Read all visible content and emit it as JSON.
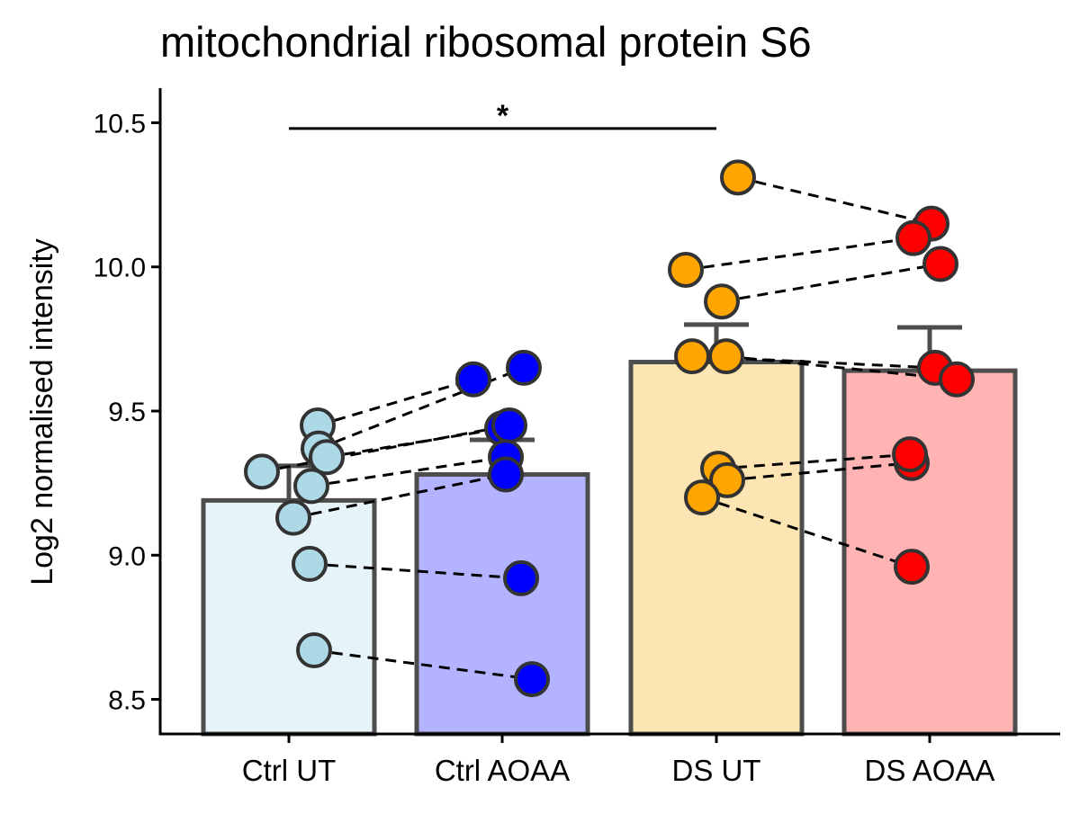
{
  "chart_data": {
    "type": "bar",
    "title": "mitochondrial ribosomal protein S6",
    "xlabel": "",
    "ylabel": "Log2 normalised intensity",
    "ylim": [
      8.38,
      10.62
    ],
    "yticks": [
      "8.5",
      "9.0",
      "9.5",
      "10.0",
      "10.5"
    ],
    "ytick_values": [
      8.5,
      9.0,
      9.5,
      10.0,
      10.5
    ],
    "categories": [
      "Ctrl UT",
      "Ctrl AOAA",
      "DS UT",
      "DS AOAA"
    ],
    "values": [
      9.19,
      9.28,
      9.67,
      9.64
    ],
    "errors": [
      0.12,
      0.12,
      0.13,
      0.15
    ],
    "bar_fill_colors": [
      "#e6f3f9",
      "#b3b3ff",
      "#fde5b3",
      "#ffb3b3"
    ],
    "point_colors": [
      "#add8e6",
      "#0000ff",
      "#ffa500",
      "#ff0000"
    ],
    "bar_edge_color": "#4d4d4d",
    "points": [
      {
        "group": "Ctrl UT",
        "values": [
          9.45,
          9.37,
          9.34,
          9.29,
          9.24,
          9.13,
          8.97,
          8.67
        ]
      },
      {
        "group": "Ctrl AOAA",
        "values": [
          9.61,
          9.65,
          9.44,
          9.45,
          9.34,
          9.28,
          8.92,
          8.57
        ]
      },
      {
        "group": "DS UT",
        "values": [
          10.31,
          9.99,
          9.88,
          9.69,
          9.69,
          9.3,
          9.26,
          9.2
        ]
      },
      {
        "group": "DS AOAA",
        "values": [
          10.15,
          10.1,
          10.01,
          9.65,
          9.61,
          9.32,
          9.35,
          8.96
        ]
      }
    ],
    "pairs": [
      {
        "from": "Ctrl UT",
        "to": "Ctrl AOAA",
        "links": [
          [
            9.45,
            9.61
          ],
          [
            9.37,
            9.65
          ],
          [
            9.34,
            9.44
          ],
          [
            9.29,
            9.45
          ],
          [
            9.24,
            9.34
          ],
          [
            9.13,
            9.28
          ],
          [
            8.97,
            8.92
          ],
          [
            8.67,
            8.57
          ]
        ]
      },
      {
        "from": "DS UT",
        "to": "DS AOAA",
        "links": [
          [
            10.31,
            10.15
          ],
          [
            9.99,
            10.1
          ],
          [
            9.88,
            10.01
          ],
          [
            9.69,
            9.65
          ],
          [
            9.69,
            9.61
          ],
          [
            9.3,
            9.35
          ],
          [
            9.26,
            9.32
          ],
          [
            9.2,
            8.96
          ]
        ]
      }
    ],
    "significance": {
      "from": "Ctrl UT",
      "to": "DS UT",
      "level": 10.48,
      "label": "*"
    },
    "grid": false,
    "legend": "none"
  }
}
